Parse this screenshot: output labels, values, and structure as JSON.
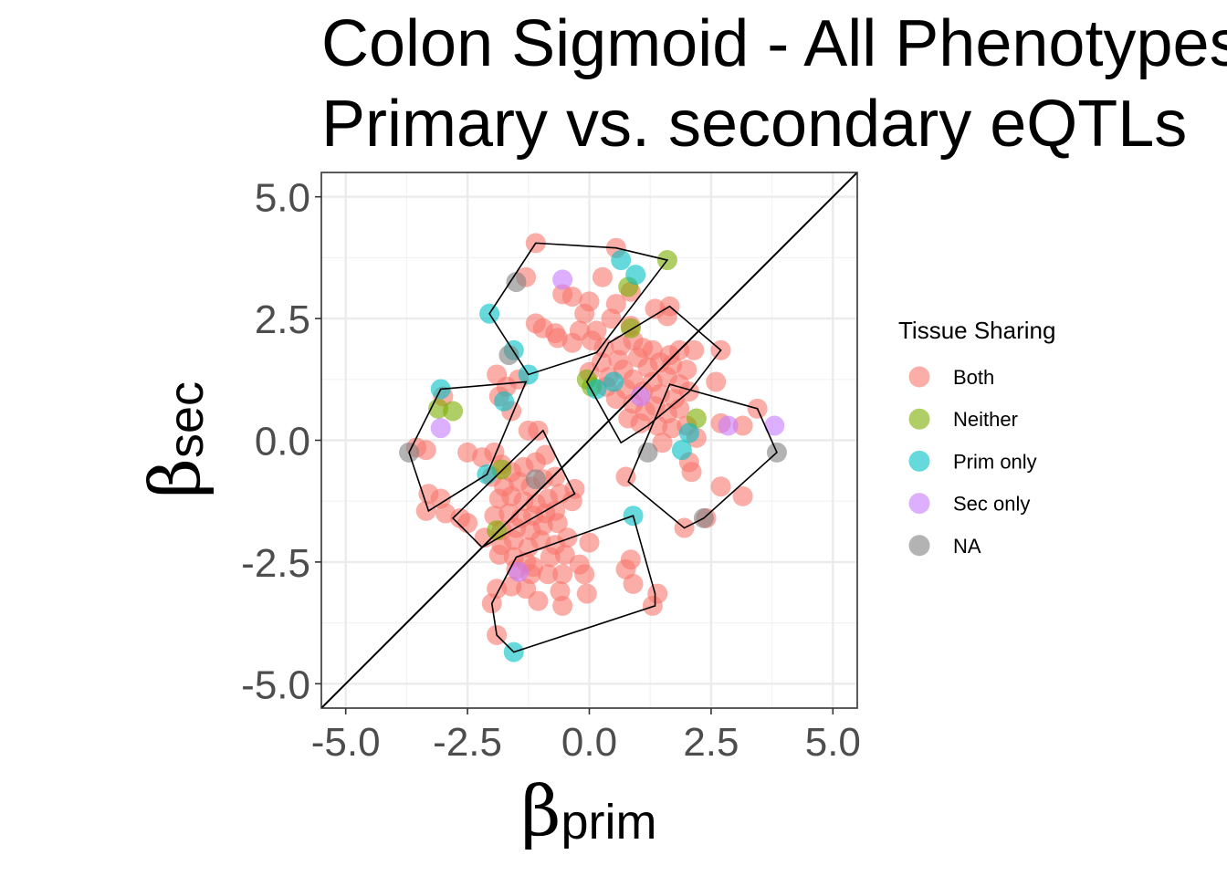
{
  "chart_data": {
    "type": "scatter",
    "title": [
      "Colon Sigmoid - All Phenotypes",
      "Primary vs. secondary eQTLs"
    ],
    "xlabel": {
      "symbol": "β",
      "sub": "prim"
    },
    "ylabel": {
      "symbol": "β",
      "sub": "sec"
    },
    "xlim": [
      -5.5,
      5.5
    ],
    "ylim": [
      -5.5,
      5.5
    ],
    "xticks": [
      "-5.0",
      "-2.5",
      "0.0",
      "2.5",
      "5.0"
    ],
    "yticks": [
      "-5.0",
      "-2.5",
      "0.0",
      "2.5",
      "5.0"
    ],
    "xtick_values": [
      -5,
      -2.5,
      0,
      2.5,
      5
    ],
    "ytick_values": [
      -5,
      -2.5,
      0,
      2.5,
      5
    ],
    "grid": true,
    "reference_line": {
      "slope": 1,
      "intercept": 0
    },
    "legend": {
      "title": "Tissue Sharing",
      "position": "right",
      "entries": [
        {
          "label": "Both",
          "color": "#F8766D"
        },
        {
          "label": "Neither",
          "color": "#7CAE00"
        },
        {
          "label": "Prim only",
          "color": "#00BFC4"
        },
        {
          "label": "Sec only",
          "color": "#C77CFF"
        },
        {
          "label": "NA",
          "color": "#808080"
        }
      ]
    },
    "series": [
      {
        "name": "Both",
        "color": "#F8766D",
        "points": [
          [
            -1.1,
            4.05
          ],
          [
            0.55,
            3.95
          ],
          [
            -1.3,
            3.35
          ],
          [
            0.27,
            3.35
          ],
          [
            0.85,
            3.05
          ],
          [
            -0.55,
            3.0
          ],
          [
            -0.35,
            2.95
          ],
          [
            0.0,
            2.85
          ],
          [
            0.55,
            2.8
          ],
          [
            1.35,
            2.7
          ],
          [
            1.65,
            2.75
          ],
          [
            1.6,
            2.55
          ],
          [
            0.45,
            2.5
          ],
          [
            0.85,
            2.35
          ],
          [
            0.15,
            2.25
          ],
          [
            -0.2,
            2.25
          ],
          [
            -0.1,
            2.6
          ],
          [
            -1.1,
            2.4
          ],
          [
            -0.95,
            2.3
          ],
          [
            -0.7,
            2.2
          ],
          [
            -0.65,
            2.1
          ],
          [
            -0.35,
            2.0
          ],
          [
            0.05,
            2.05
          ],
          [
            0.3,
            1.9
          ],
          [
            0.65,
            1.95
          ],
          [
            0.9,
            2.05
          ],
          [
            1.1,
            1.9
          ],
          [
            1.3,
            1.85
          ],
          [
            1.65,
            1.75
          ],
          [
            1.85,
            1.85
          ],
          [
            2.15,
            1.85
          ],
          [
            2.7,
            1.85
          ],
          [
            0.25,
            1.6
          ],
          [
            0.6,
            1.65
          ],
          [
            1.0,
            1.7
          ],
          [
            1.2,
            1.5
          ],
          [
            1.45,
            1.6
          ],
          [
            1.7,
            1.55
          ],
          [
            2.0,
            1.45
          ],
          [
            0.0,
            1.4
          ],
          [
            0.4,
            1.3
          ],
          [
            0.7,
            1.45
          ],
          [
            0.9,
            1.25
          ],
          [
            1.3,
            1.2
          ],
          [
            1.6,
            1.3
          ],
          [
            1.85,
            1.15
          ],
          [
            2.05,
            1.0
          ],
          [
            2.6,
            1.2
          ],
          [
            0.35,
            1.1
          ],
          [
            0.75,
            1.05
          ],
          [
            1.1,
            1.0
          ],
          [
            1.45,
            0.95
          ],
          [
            1.75,
            0.85
          ],
          [
            0.55,
            0.85
          ],
          [
            0.9,
            0.75
          ],
          [
            1.15,
            0.6
          ],
          [
            1.35,
            0.7
          ],
          [
            1.6,
            0.55
          ],
          [
            1.85,
            0.65
          ],
          [
            0.8,
            0.45
          ],
          [
            1.05,
            0.35
          ],
          [
            1.4,
            0.3
          ],
          [
            1.7,
            0.25
          ],
          [
            2.0,
            0.3
          ],
          [
            2.7,
            0.35
          ],
          [
            3.15,
            0.3
          ],
          [
            3.45,
            0.65
          ],
          [
            2.2,
            0.05
          ],
          [
            1.5,
            -0.05
          ],
          [
            2.05,
            -0.45
          ],
          [
            2.1,
            -0.65
          ],
          [
            0.75,
            -0.75
          ],
          [
            2.7,
            -0.95
          ],
          [
            3.15,
            -1.15
          ],
          [
            1.95,
            -1.8
          ],
          [
            2.4,
            -1.6
          ],
          [
            -1.9,
            1.35
          ],
          [
            -1.7,
            1.1
          ],
          [
            -1.45,
            1.25
          ],
          [
            -1.85,
            0.9
          ],
          [
            -1.6,
            0.6
          ],
          [
            -1.25,
            0.2
          ],
          [
            -1.05,
            0.2
          ],
          [
            -3.0,
            0.9
          ],
          [
            -3.55,
            -0.15
          ],
          [
            -3.35,
            -0.2
          ],
          [
            -3.3,
            -1.1
          ],
          [
            -3.05,
            -1.2
          ],
          [
            -3.35,
            -1.45
          ],
          [
            -2.95,
            -1.5
          ],
          [
            -2.65,
            -1.6
          ],
          [
            -2.5,
            -1.7
          ],
          [
            -2.5,
            -0.25
          ],
          [
            -2.2,
            -0.35
          ],
          [
            -1.95,
            -0.25
          ],
          [
            -1.8,
            -0.5
          ],
          [
            -1.6,
            -0.65
          ],
          [
            -1.35,
            -0.55
          ],
          [
            -1.1,
            -0.45
          ],
          [
            -0.9,
            -0.3
          ],
          [
            -2.0,
            -0.75
          ],
          [
            -1.75,
            -0.95
          ],
          [
            -1.45,
            -0.85
          ],
          [
            -1.2,
            -0.95
          ],
          [
            -0.95,
            -0.8
          ],
          [
            -0.7,
            -0.75
          ],
          [
            -1.85,
            -1.2
          ],
          [
            -1.6,
            -1.15
          ],
          [
            -1.35,
            -1.25
          ],
          [
            -1.1,
            -1.3
          ],
          [
            -0.85,
            -1.2
          ],
          [
            -0.6,
            -1.1
          ],
          [
            -0.3,
            -1.0
          ],
          [
            -1.95,
            -1.55
          ],
          [
            -1.65,
            -1.5
          ],
          [
            -1.4,
            -1.6
          ],
          [
            -1.15,
            -1.55
          ],
          [
            -0.9,
            -1.5
          ],
          [
            -0.7,
            -1.45
          ],
          [
            -0.35,
            -1.25
          ],
          [
            -1.8,
            -1.85
          ],
          [
            -1.5,
            -1.8
          ],
          [
            -1.2,
            -1.85
          ],
          [
            -0.95,
            -1.75
          ],
          [
            -0.65,
            -1.7
          ],
          [
            -2.15,
            -2.0
          ],
          [
            -1.8,
            -2.15
          ],
          [
            -1.55,
            -2.05
          ],
          [
            -1.25,
            -2.2
          ],
          [
            -1.0,
            -2.05
          ],
          [
            -0.7,
            -2.15
          ],
          [
            -0.45,
            -2.0
          ],
          [
            0.0,
            -2.1
          ],
          [
            -1.85,
            -2.35
          ],
          [
            -1.55,
            -2.4
          ],
          [
            -1.3,
            -2.5
          ],
          [
            -0.8,
            -2.4
          ],
          [
            -0.5,
            -2.35
          ],
          [
            -0.2,
            -2.55
          ],
          [
            -1.5,
            -2.65
          ],
          [
            -1.15,
            -2.6
          ],
          [
            -0.85,
            -2.75
          ],
          [
            -0.55,
            -2.75
          ],
          [
            -0.1,
            -2.75
          ],
          [
            0.85,
            -2.45
          ],
          [
            0.75,
            -2.65
          ],
          [
            0.9,
            -2.95
          ],
          [
            -1.9,
            -3.05
          ],
          [
            -1.6,
            -3.0
          ],
          [
            -1.3,
            -3.05
          ],
          [
            -1.05,
            -3.3
          ],
          [
            -0.6,
            -3.1
          ],
          [
            -0.55,
            -3.4
          ],
          [
            -0.05,
            -3.15
          ],
          [
            1.4,
            -3.15
          ],
          [
            1.3,
            -3.4
          ],
          [
            -2.0,
            -3.35
          ],
          [
            -1.9,
            -4.0
          ],
          [
            -1.2,
            -2.75
          ]
        ]
      },
      {
        "name": "Neither",
        "color": "#7CAE00",
        "points": [
          [
            1.6,
            3.7
          ],
          [
            0.8,
            3.15
          ],
          [
            -0.05,
            1.25
          ],
          [
            0.05,
            1.1
          ],
          [
            0.85,
            2.3
          ],
          [
            -3.1,
            0.65
          ],
          [
            -2.8,
            0.6
          ],
          [
            2.2,
            0.45
          ],
          [
            -1.8,
            -0.6
          ],
          [
            -1.9,
            -1.85
          ]
        ]
      },
      {
        "name": "Prim only",
        "color": "#00BFC4",
        "points": [
          [
            0.65,
            3.7
          ],
          [
            0.95,
            3.4
          ],
          [
            -2.05,
            2.6
          ],
          [
            -1.55,
            1.85
          ],
          [
            -1.25,
            1.35
          ],
          [
            -3.05,
            1.05
          ],
          [
            -1.75,
            0.8
          ],
          [
            0.5,
            1.2
          ],
          [
            0.15,
            1.05
          ],
          [
            2.05,
            0.15
          ],
          [
            1.9,
            -0.2
          ],
          [
            -2.1,
            -0.7
          ],
          [
            0.9,
            -1.55
          ],
          [
            -1.55,
            -4.35
          ]
        ]
      },
      {
        "name": "Sec only",
        "color": "#C77CFF",
        "points": [
          [
            -0.55,
            3.3
          ],
          [
            1.05,
            0.9
          ],
          [
            -3.05,
            0.25
          ],
          [
            2.85,
            0.3
          ],
          [
            3.8,
            0.3
          ],
          [
            -1.45,
            -2.7
          ]
        ]
      },
      {
        "name": "NA",
        "color": "#808080",
        "points": [
          [
            -1.5,
            3.25
          ],
          [
            -1.65,
            1.75
          ],
          [
            -3.7,
            -0.25
          ],
          [
            1.2,
            -0.25
          ],
          [
            3.85,
            -0.25
          ],
          [
            2.35,
            -1.6
          ],
          [
            -1.1,
            -0.8
          ]
        ]
      }
    ],
    "hulls": [
      [
        [
          -1.1,
          4.05
        ],
        [
          0.55,
          3.95
        ],
        [
          1.6,
          3.7
        ],
        [
          0.15,
          1.8
        ],
        [
          -1.25,
          1.35
        ],
        [
          -2.05,
          2.6
        ]
      ],
      [
        [
          -0.05,
          1.2
        ],
        [
          0.4,
          2.0
        ],
        [
          1.65,
          2.75
        ],
        [
          2.7,
          1.85
        ],
        [
          2.05,
          1.0
        ],
        [
          1.2,
          0.3
        ],
        [
          0.65,
          -0.05
        ]
      ],
      [
        [
          -3.05,
          1.05
        ],
        [
          -1.3,
          1.2
        ],
        [
          -2.1,
          -0.7
        ],
        [
          -3.3,
          -1.45
        ],
        [
          -3.7,
          -0.25
        ]
      ],
      [
        [
          -0.95,
          0.2
        ],
        [
          -0.3,
          -1.1
        ],
        [
          -2.2,
          -2.2
        ],
        [
          -2.8,
          -1.6
        ]
      ],
      [
        [
          -2.0,
          -3.35
        ],
        [
          -1.9,
          -4.0
        ],
        [
          -1.55,
          -4.35
        ],
        [
          1.35,
          -3.4
        ],
        [
          1.35,
          -3.15
        ],
        [
          0.9,
          -1.55
        ],
        [
          -1.5,
          -2.4
        ]
      ],
      [
        [
          1.65,
          1.15
        ],
        [
          3.45,
          0.65
        ],
        [
          3.85,
          -0.25
        ],
        [
          2.35,
          -1.6
        ],
        [
          1.95,
          -1.8
        ],
        [
          0.8,
          -0.85
        ]
      ]
    ]
  }
}
